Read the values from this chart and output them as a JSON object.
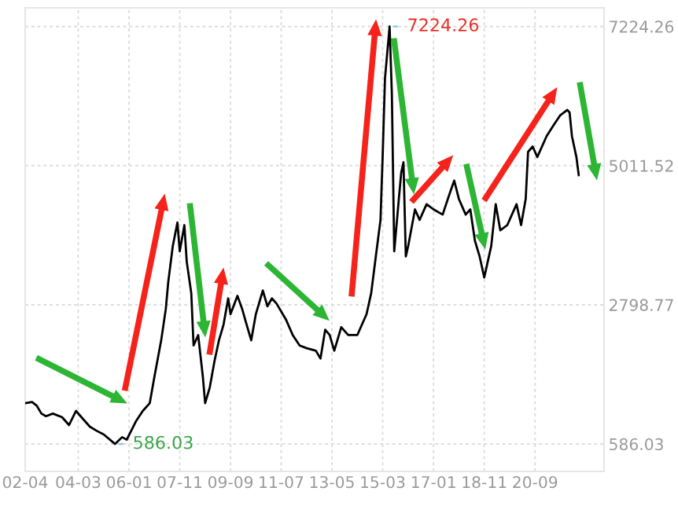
{
  "chart_data": {
    "type": "line",
    "x": [
      "2002-04",
      "2002-07",
      "2002-09",
      "2002-11",
      "2003-01",
      "2003-04",
      "2003-08",
      "2003-11",
      "2004-02",
      "2004-05",
      "2004-08",
      "2004-11",
      "2005-02",
      "2005-07",
      "2005-10",
      "2005-12",
      "2006-04",
      "2006-07",
      "2006-10",
      "2006-12",
      "2007-03",
      "2007-05",
      "2007-06",
      "2007-08",
      "2007-10",
      "2007-11",
      "2008-01",
      "2008-02",
      "2008-04",
      "2008-05",
      "2008-07",
      "2008-09",
      "2008-10",
      "2008-12",
      "2009-02",
      "2009-04",
      "2009-06",
      "2009-08",
      "2009-09",
      "2009-12",
      "2010-02",
      "2010-04",
      "2010-06",
      "2010-08",
      "2010-11",
      "2011-01",
      "2011-03",
      "2011-05",
      "2011-09",
      "2011-12",
      "2012-03",
      "2012-06",
      "2012-10",
      "2012-12",
      "2013-02",
      "2013-04",
      "2013-06",
      "2013-09",
      "2013-12",
      "2014-04",
      "2014-08",
      "2014-10",
      "2014-12",
      "2015-02",
      "2015-03",
      "2015-04",
      "2015-06",
      "2015-07",
      "2015-08",
      "2015-10",
      "2015-11",
      "2015-12",
      "2016-01",
      "2016-02",
      "2016-05",
      "2016-07",
      "2016-10",
      "2017-01",
      "2017-05",
      "2017-08",
      "2017-10",
      "2017-12",
      "2018-03",
      "2018-05",
      "2018-07",
      "2018-09",
      "2018-11",
      "2019-02",
      "2019-04",
      "2019-06",
      "2019-09",
      "2020-01",
      "2020-03",
      "2020-05",
      "2020-06",
      "2020-08",
      "2020-10",
      "2021-02",
      "2021-05",
      "2021-08",
      "2021-11",
      "2021-12",
      "2022-01",
      "2022-03",
      "2022-04"
    ],
    "series": [
      {
        "color": "#000000",
        "values": [
          1236,
          1253,
          1195,
          1070,
          1028,
          1070,
          1012,
          887,
          1112,
          987,
          862,
          795,
          737,
          586.03,
          695,
          654,
          945,
          1112,
          1236,
          1652,
          2235,
          2734,
          3151,
          3733,
          4108,
          3650,
          4066,
          3484,
          2984,
          2152,
          2318,
          1652,
          1236,
          1486,
          1902,
          2235,
          2485,
          2901,
          2651,
          2942,
          2734,
          2485,
          2235,
          2651,
          3026,
          2776,
          2901,
          2818,
          2568,
          2318,
          2152,
          2110,
          2069,
          1944,
          2402,
          2318,
          2069,
          2443,
          2318,
          2318,
          2651,
          2984,
          3567,
          4149,
          5148,
          6397,
          7224.26,
          6147,
          3650,
          4482,
          4898,
          5065,
          3567,
          3733,
          4316,
          4149,
          4399,
          4316,
          4233,
          4566,
          4774,
          4482,
          4233,
          4316,
          3816,
          3567,
          3234,
          3733,
          4399,
          3983,
          4066,
          4399,
          4066,
          4482,
          5231,
          5315,
          5148,
          5481,
          5648,
          5814,
          5897,
          5856,
          5481,
          5148,
          4857
        ]
      }
    ],
    "xlim": [
      "2002-04",
      "2023-03"
    ],
    "xticks": [
      {
        "value": "2002-04",
        "label": "02-04"
      },
      {
        "value": "2004-03",
        "label": "04-03"
      },
      {
        "value": "2006-01",
        "label": "06-01"
      },
      {
        "value": "2007-11",
        "label": "07-11"
      },
      {
        "value": "2009-09",
        "label": "09-09"
      },
      {
        "value": "2011-07",
        "label": "11-07"
      },
      {
        "value": "2013-05",
        "label": "13-05"
      },
      {
        "value": "2015-03",
        "label": "15-03"
      },
      {
        "value": "2017-01",
        "label": "17-01"
      },
      {
        "value": "2018-11",
        "label": "18-11"
      },
      {
        "value": "2020-09",
        "label": "20-09"
      }
    ],
    "ylim": [
      150,
      7520
    ],
    "yticks": [
      586.03,
      2798.77,
      5011.52,
      7224.26
    ],
    "grid": true,
    "legend": false,
    "annotations": [
      {
        "text": "586.03",
        "x": "2005-07",
        "y": 586.03
      },
      {
        "text": "7224.26",
        "x": "2015-06",
        "y": 7224.26
      }
    ]
  }
}
